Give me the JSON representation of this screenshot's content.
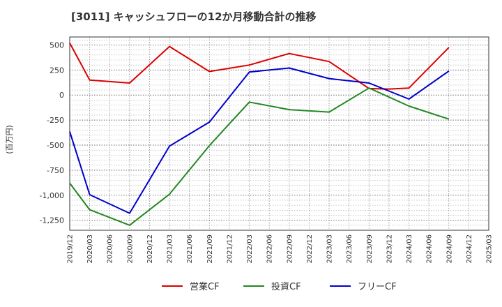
{
  "chart_data": {
    "type": "line",
    "title": "[3011]  キャッシュフローの12か月移動合計の推移",
    "ylabel": "(百万円)",
    "xlabel": "",
    "ylim": [
      -1350,
      580
    ],
    "yticks": [
      500,
      250,
      0,
      -250,
      -500,
      -750,
      -1000,
      -1250
    ],
    "ytick_labels": [
      "500",
      "250",
      "0",
      "-250",
      "-500",
      "-750",
      "-1,000",
      "-1,250"
    ],
    "x_labels": [
      "2019/12",
      "2020/03",
      "2020/06",
      "2020/09",
      "2020/12",
      "2021/03",
      "2021/06",
      "2021/09",
      "2021/12",
      "2022/03",
      "2022/06",
      "2022/09",
      "2022/12",
      "2023/03",
      "2023/06",
      "2023/09",
      "2023/12",
      "2024/03",
      "2024/06",
      "2024/09",
      "2024/12",
      "2025/03"
    ],
    "grid": true,
    "legend_position": "bottom",
    "series": [
      {
        "name": "営業CF",
        "color": "#dd0000",
        "points": [
          [
            0,
            520
          ],
          [
            1,
            150
          ],
          [
            3,
            120
          ],
          [
            5,
            485
          ],
          [
            7,
            235
          ],
          [
            9,
            300
          ],
          [
            11,
            415
          ],
          [
            13,
            335
          ],
          [
            15,
            65
          ],
          [
            16,
            60
          ],
          [
            17,
            70
          ],
          [
            19,
            475
          ]
        ]
      },
      {
        "name": "投資CF",
        "color": "#228822",
        "points": [
          [
            0,
            -880
          ],
          [
            1,
            -1145
          ],
          [
            3,
            -1300
          ],
          [
            5,
            -990
          ],
          [
            7,
            -505
          ],
          [
            9,
            -70
          ],
          [
            11,
            -145
          ],
          [
            13,
            -170
          ],
          [
            15,
            70
          ],
          [
            17,
            -110
          ],
          [
            19,
            -240
          ]
        ]
      },
      {
        "name": "フリーCF",
        "color": "#0000cc",
        "points": [
          [
            0,
            -365
          ],
          [
            1,
            -995
          ],
          [
            3,
            -1180
          ],
          [
            5,
            -510
          ],
          [
            7,
            -270
          ],
          [
            9,
            230
          ],
          [
            11,
            270
          ],
          [
            13,
            165
          ],
          [
            15,
            120
          ],
          [
            16,
            40
          ],
          [
            17,
            -40
          ],
          [
            19,
            240
          ]
        ]
      }
    ]
  }
}
